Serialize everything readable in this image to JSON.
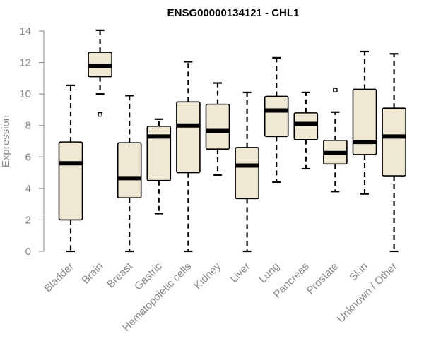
{
  "chart_data": {
    "type": "box",
    "title": "ENSG00000134121 - CHL1",
    "xlabel": "",
    "ylabel": "Expression",
    "ylim": [
      0,
      14
    ],
    "yticks": [
      0,
      2,
      4,
      6,
      8,
      10,
      12,
      14
    ],
    "grid": false,
    "categories": [
      "Bladder",
      "Brain",
      "Breast",
      "Gastric",
      "Hematopoietic cells",
      "Kidney",
      "Liver",
      "Lung",
      "Pancreas",
      "Prostate",
      "Skin",
      "Unknown / Other"
    ],
    "boxes": [
      {
        "category": "Bladder",
        "whisker_low": 0.0,
        "q1": 2.0,
        "median": 5.6,
        "q3": 6.95,
        "whisker_high": 10.55,
        "outliers": []
      },
      {
        "category": "Brain",
        "whisker_low": 10.0,
        "q1": 11.1,
        "median": 11.8,
        "q3": 12.65,
        "whisker_high": 14.05,
        "outliers": [
          8.7
        ]
      },
      {
        "category": "Breast",
        "whisker_low": 0.0,
        "q1": 3.4,
        "median": 4.65,
        "q3": 6.9,
        "whisker_high": 9.9,
        "outliers": []
      },
      {
        "category": "Gastric",
        "whisker_low": 2.4,
        "q1": 4.5,
        "median": 7.3,
        "q3": 7.95,
        "whisker_high": 8.4,
        "outliers": []
      },
      {
        "category": "Hematopoietic cells",
        "whisker_low": 0.0,
        "q1": 5.0,
        "median": 8.0,
        "q3": 9.5,
        "whisker_high": 12.05,
        "outliers": []
      },
      {
        "category": "Kidney",
        "whisker_low": 4.85,
        "q1": 6.5,
        "median": 7.65,
        "q3": 9.35,
        "whisker_high": 10.7,
        "outliers": []
      },
      {
        "category": "Liver",
        "whisker_low": 0.0,
        "q1": 3.35,
        "median": 5.45,
        "q3": 6.6,
        "whisker_high": 10.1,
        "outliers": []
      },
      {
        "category": "Lung",
        "whisker_low": 4.4,
        "q1": 7.3,
        "median": 8.95,
        "q3": 9.85,
        "whisker_high": 12.3,
        "outliers": []
      },
      {
        "category": "Pancreas",
        "whisker_low": 5.25,
        "q1": 7.1,
        "median": 8.1,
        "q3": 8.8,
        "whisker_high": 10.1,
        "outliers": []
      },
      {
        "category": "Prostate",
        "whisker_low": 3.8,
        "q1": 5.55,
        "median": 6.25,
        "q3": 7.05,
        "whisker_high": 8.85,
        "outliers": [
          10.25
        ]
      },
      {
        "category": "Skin",
        "whisker_low": 3.65,
        "q1": 6.15,
        "median": 6.95,
        "q3": 10.3,
        "whisker_high": 12.7,
        "outliers": []
      },
      {
        "category": "Unknown / Other",
        "whisker_low": 0.0,
        "q1": 4.8,
        "median": 7.3,
        "q3": 9.1,
        "whisker_high": 12.55,
        "outliers": []
      }
    ],
    "colors": {
      "box_fill": "#efe8d2",
      "box_stroke": "#000000",
      "axis": "#888888",
      "tick_text": "#888888",
      "title": "#000000"
    }
  }
}
